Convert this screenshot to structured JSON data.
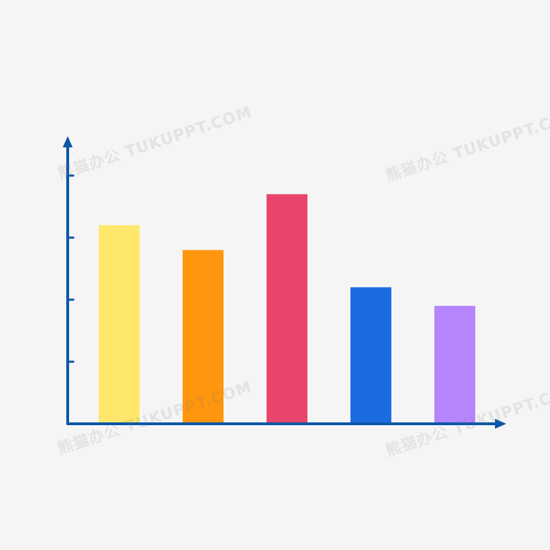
{
  "chart_data": {
    "type": "bar",
    "categories": [
      "",
      "",
      "",
      "",
      ""
    ],
    "values": [
      3.2,
      2.8,
      3.7,
      2.2,
      1.9
    ],
    "colors": [
      "#ffe76b",
      "#ff960d",
      "#e9446a",
      "#1c6be3",
      "#b585fd"
    ],
    "axis_color": "#0b57a8",
    "title": "",
    "xlabel": "",
    "ylabel": "",
    "ylim": [
      0,
      4.5
    ],
    "y_ticks": [
      1,
      2,
      3,
      4
    ],
    "grid": false,
    "legend": "none"
  },
  "watermark": {
    "text": "熊猫办公 TUKUPPT.COM"
  }
}
